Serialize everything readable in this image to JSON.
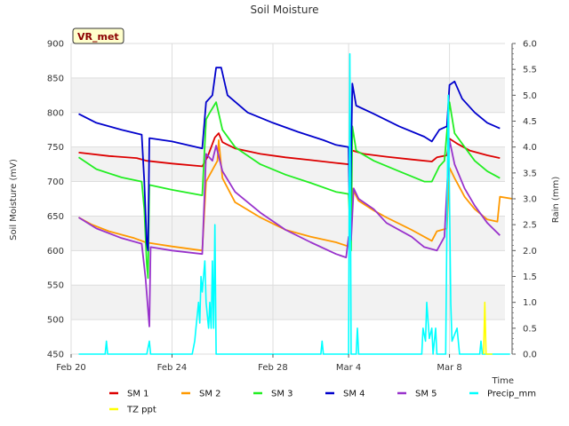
{
  "chart_data": {
    "type": "line",
    "title": "Soil Moisture",
    "site_label": "VR_met",
    "xlabel": "Time",
    "ylabel": "Soil Moisture (mV)",
    "y2label": "Rain (mm)",
    "x_ticks": [
      {
        "day": 0,
        "label": "Feb 20"
      },
      {
        "day": 4,
        "label": "Feb 24"
      },
      {
        "day": 8,
        "label": "Feb 28"
      },
      {
        "day": 11,
        "label": "Mar 4"
      },
      {
        "day": 15,
        "label": "Mar 8"
      }
    ],
    "xlim_days": [
      0,
      17.2
    ],
    "ylim": [
      450,
      900
    ],
    "y_ticks": [
      450,
      500,
      550,
      600,
      650,
      700,
      750,
      800,
      850,
      900
    ],
    "y2lim": [
      0,
      6
    ],
    "y2_ticks": [
      "0.0",
      "0.5",
      "1.0",
      "1.5",
      "2.0",
      "2.5",
      "3.0",
      "3.5",
      "4.0",
      "4.5",
      "5.0",
      "5.5",
      "6.0"
    ],
    "grid": true,
    "legend_position": "bottom",
    "series": [
      {
        "name": "SM 1",
        "color": "#dd0000",
        "axis": "left",
        "points": [
          [
            0.3,
            742
          ],
          [
            1.5,
            737
          ],
          [
            2.6,
            734
          ],
          [
            3.0,
            730
          ],
          [
            4.0,
            726
          ],
          [
            5.2,
            722
          ],
          [
            5.4,
            735
          ],
          [
            5.7,
            764
          ],
          [
            5.85,
            770
          ],
          [
            6.0,
            757
          ],
          [
            6.5,
            748
          ],
          [
            7.5,
            740
          ],
          [
            8.5,
            735
          ],
          [
            9.5,
            731
          ],
          [
            10.5,
            727
          ],
          [
            11.0,
            725
          ],
          [
            11.15,
            745
          ],
          [
            11.6,
            740
          ],
          [
            12.5,
            736
          ],
          [
            13.5,
            732
          ],
          [
            14.3,
            729
          ],
          [
            14.5,
            735
          ],
          [
            14.9,
            738
          ],
          [
            15.0,
            762
          ],
          [
            15.3,
            755
          ],
          [
            15.8,
            745
          ],
          [
            16.5,
            738
          ],
          [
            17.0,
            734
          ]
        ]
      },
      {
        "name": "SM 2",
        "color": "#ff9900",
        "axis": "left",
        "points": [
          [
            0.3,
            648
          ],
          [
            0.8,
            638
          ],
          [
            1.5,
            628
          ],
          [
            2.5,
            618
          ],
          [
            2.95,
            612
          ],
          [
            3.3,
            610
          ],
          [
            4.0,
            606
          ],
          [
            5.2,
            600
          ],
          [
            5.35,
            700
          ],
          [
            5.5,
            710
          ],
          [
            5.8,
            730
          ],
          [
            5.85,
            760
          ],
          [
            6.0,
            705
          ],
          [
            6.5,
            670
          ],
          [
            7.5,
            648
          ],
          [
            8.5,
            630
          ],
          [
            9.5,
            620
          ],
          [
            10.5,
            612
          ],
          [
            11.0,
            606
          ],
          [
            11.15,
            690
          ],
          [
            11.4,
            672
          ],
          [
            12.0,
            658
          ],
          [
            12.5,
            648
          ],
          [
            13.5,
            630
          ],
          [
            14.3,
            614
          ],
          [
            14.5,
            628
          ],
          [
            14.9,
            632
          ],
          [
            15.0,
            720
          ],
          [
            15.2,
            705
          ],
          [
            15.6,
            678
          ],
          [
            16.0,
            660
          ],
          [
            16.5,
            645
          ],
          [
            16.9,
            642
          ],
          [
            17.0,
            678
          ],
          [
            17.5,
            675
          ]
        ]
      },
      {
        "name": "SM 3",
        "color": "#22ee22",
        "axis": "left",
        "points": [
          [
            0.3,
            735
          ],
          [
            1.0,
            718
          ],
          [
            2.0,
            706
          ],
          [
            2.8,
            700
          ],
          [
            2.9,
            660
          ],
          [
            3.0,
            580
          ],
          [
            3.05,
            560
          ],
          [
            3.1,
            695
          ],
          [
            4.0,
            688
          ],
          [
            5.2,
            680
          ],
          [
            5.35,
            790
          ],
          [
            5.5,
            800
          ],
          [
            5.75,
            815
          ],
          [
            6.0,
            775
          ],
          [
            6.5,
            750
          ],
          [
            7.5,
            725
          ],
          [
            8.5,
            710
          ],
          [
            9.5,
            698
          ],
          [
            10.5,
            685
          ],
          [
            11.0,
            682
          ],
          [
            11.1,
            600
          ],
          [
            11.15,
            780
          ],
          [
            11.3,
            745
          ],
          [
            12.0,
            730
          ],
          [
            13.0,
            715
          ],
          [
            14.0,
            700
          ],
          [
            14.3,
            700
          ],
          [
            14.6,
            722
          ],
          [
            14.8,
            730
          ],
          [
            15.0,
            815
          ],
          [
            15.2,
            770
          ],
          [
            15.6,
            750
          ],
          [
            16.0,
            730
          ],
          [
            16.5,
            715
          ],
          [
            17.0,
            705
          ]
        ]
      },
      {
        "name": "SM 4",
        "color": "#0000cc",
        "axis": "left",
        "points": [
          [
            0.3,
            798
          ],
          [
            1.0,
            785
          ],
          [
            2.0,
            775
          ],
          [
            2.8,
            768
          ],
          [
            2.9,
            700
          ],
          [
            3.0,
            610
          ],
          [
            3.05,
            600
          ],
          [
            3.1,
            763
          ],
          [
            4.0,
            758
          ],
          [
            5.2,
            748
          ],
          [
            5.35,
            815
          ],
          [
            5.6,
            825
          ],
          [
            5.75,
            865
          ],
          [
            5.95,
            865
          ],
          [
            6.2,
            825
          ],
          [
            7.0,
            800
          ],
          [
            8.0,
            785
          ],
          [
            9.0,
            772
          ],
          [
            10.0,
            760
          ],
          [
            10.5,
            753
          ],
          [
            11.0,
            750
          ],
          [
            11.05,
            620
          ],
          [
            11.15,
            842
          ],
          [
            11.3,
            810
          ],
          [
            12.0,
            798
          ],
          [
            13.0,
            780
          ],
          [
            14.0,
            765
          ],
          [
            14.3,
            758
          ],
          [
            14.6,
            775
          ],
          [
            14.9,
            780
          ],
          [
            15.0,
            840
          ],
          [
            15.2,
            845
          ],
          [
            15.5,
            820
          ],
          [
            16.0,
            800
          ],
          [
            16.5,
            785
          ],
          [
            17.0,
            777
          ]
        ]
      },
      {
        "name": "SM 5",
        "color": "#9933cc",
        "axis": "left",
        "points": [
          [
            0.3,
            648
          ],
          [
            1.0,
            632
          ],
          [
            2.0,
            618
          ],
          [
            2.8,
            610
          ],
          [
            2.95,
            560
          ],
          [
            3.1,
            490
          ],
          [
            3.15,
            605
          ],
          [
            4.0,
            600
          ],
          [
            5.2,
            595
          ],
          [
            5.35,
            740
          ],
          [
            5.6,
            730
          ],
          [
            5.75,
            752
          ],
          [
            6.0,
            715
          ],
          [
            6.5,
            685
          ],
          [
            7.5,
            655
          ],
          [
            8.5,
            630
          ],
          [
            9.5,
            612
          ],
          [
            10.5,
            595
          ],
          [
            10.9,
            590
          ],
          [
            11.0,
            620
          ],
          [
            11.1,
            615
          ],
          [
            11.2,
            690
          ],
          [
            11.4,
            675
          ],
          [
            12.0,
            660
          ],
          [
            12.5,
            640
          ],
          [
            13.5,
            620
          ],
          [
            14.0,
            605
          ],
          [
            14.5,
            600
          ],
          [
            14.8,
            620
          ],
          [
            15.0,
            760
          ],
          [
            15.2,
            725
          ],
          [
            15.6,
            690
          ],
          [
            16.0,
            665
          ],
          [
            16.5,
            640
          ],
          [
            17.0,
            622
          ]
        ]
      },
      {
        "name": "Precip_mm",
        "color": "#00ffff",
        "axis": "right",
        "points": [
          [
            0.3,
            0
          ],
          [
            1.35,
            0
          ],
          [
            1.4,
            0.25
          ],
          [
            1.45,
            0
          ],
          [
            3.0,
            0
          ],
          [
            3.1,
            0.25
          ],
          [
            3.15,
            0
          ],
          [
            4.8,
            0
          ],
          [
            4.9,
            0.25
          ],
          [
            4.95,
            0.5
          ],
          [
            5.05,
            1.0
          ],
          [
            5.1,
            0.6
          ],
          [
            5.15,
            1.5
          ],
          [
            5.2,
            1.2
          ],
          [
            5.3,
            1.8
          ],
          [
            5.35,
            1.0
          ],
          [
            5.45,
            0.5
          ],
          [
            5.5,
            1.0
          ],
          [
            5.55,
            0.5
          ],
          [
            5.6,
            1.8
          ],
          [
            5.65,
            0.5
          ],
          [
            5.7,
            2.5
          ],
          [
            5.75,
            0
          ],
          [
            9.9,
            0
          ],
          [
            9.95,
            0.25
          ],
          [
            10.0,
            0
          ],
          [
            11.0,
            0
          ],
          [
            11.05,
            5.8
          ],
          [
            11.1,
            0
          ],
          [
            11.3,
            0
          ],
          [
            11.35,
            0.5
          ],
          [
            11.4,
            0
          ],
          [
            13.9,
            0
          ],
          [
            13.95,
            0.5
          ],
          [
            14.05,
            0.25
          ],
          [
            14.1,
            1.0
          ],
          [
            14.2,
            0.3
          ],
          [
            14.3,
            0.5
          ],
          [
            14.35,
            0
          ],
          [
            14.45,
            0.5
          ],
          [
            14.5,
            0
          ],
          [
            14.85,
            0
          ],
          [
            14.9,
            2.5
          ],
          [
            14.95,
            5.0
          ],
          [
            15.05,
            1.0
          ],
          [
            15.1,
            0.25
          ],
          [
            15.3,
            0.5
          ],
          [
            15.4,
            0
          ],
          [
            16.2,
            0
          ],
          [
            16.25,
            0.25
          ],
          [
            16.3,
            0
          ],
          [
            17.4,
            0
          ]
        ]
      },
      {
        "name": "TZ ppt",
        "color": "#ffff00",
        "axis": "right",
        "points": [
          [
            16.35,
            0
          ],
          [
            16.4,
            1.0
          ],
          [
            16.45,
            0
          ],
          [
            16.7,
            0
          ]
        ]
      }
    ]
  }
}
